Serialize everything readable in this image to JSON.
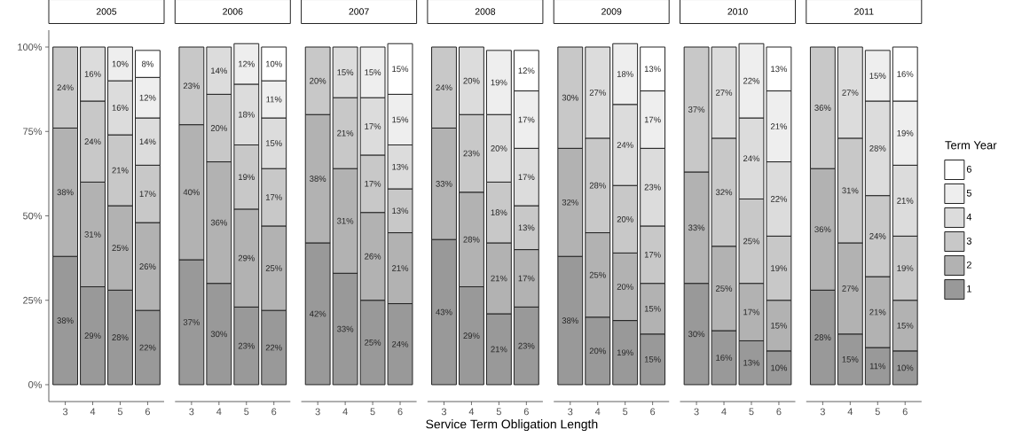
{
  "chart_data": [
    {
      "type": "bar",
      "stacked": true,
      "title": "2005",
      "categories": [
        "3",
        "4",
        "5",
        "6"
      ],
      "ylim": [
        -5,
        105
      ],
      "yticks": [
        {
          "value": 0,
          "label": "0%"
        },
        {
          "value": 25,
          "label": "25%"
        },
        {
          "value": 50,
          "label": "50%"
        },
        {
          "value": 75,
          "label": "75%"
        },
        {
          "value": 100,
          "label": "100%"
        }
      ],
      "series": [
        {
          "color": "#999999",
          "values": [
            38,
            29,
            28,
            22
          ],
          "value_labels": [
            "38%",
            "29%",
            "28%",
            "22%"
          ]
        },
        {
          "color": "#b2b2b2",
          "values": [
            38,
            31,
            25,
            26
          ],
          "value_labels": [
            "38%",
            "31%",
            "25%",
            "26%"
          ]
        },
        {
          "color": "#c8c8c8",
          "values": [
            24,
            24,
            21,
            17
          ],
          "value_labels": [
            "24%",
            "24%",
            "21%",
            "17%"
          ]
        },
        {
          "color": "#dcdcdc",
          "values": [
            null,
            16,
            16,
            14
          ],
          "value_labels": [
            null,
            "16%",
            "16%",
            "14%"
          ]
        },
        {
          "color": "#eeeeee",
          "values": [
            null,
            null,
            10,
            12
          ],
          "value_labels": [
            null,
            null,
            "10%",
            "12%"
          ]
        },
        {
          "color": "#ffffff",
          "values": [
            null,
            null,
            null,
            8
          ],
          "value_labels": [
            null,
            null,
            null,
            "8%"
          ]
        }
      ]
    },
    {
      "type": "bar",
      "stacked": true,
      "title": "2006",
      "categories": [
        "3",
        "4",
        "5",
        "6"
      ],
      "tick_labels": "x",
      "series": [
        {
          "color": "#999999",
          "values": [
            37,
            30,
            23,
            22
          ],
          "value_labels": [
            "37%",
            "30%",
            "23%",
            "22%"
          ]
        },
        {
          "color": "#b2b2b2",
          "values": [
            40,
            36,
            29,
            25
          ],
          "value_labels": [
            "40%",
            "36%",
            "29%",
            "25%"
          ]
        },
        {
          "color": "#c8c8c8",
          "values": [
            23,
            20,
            19,
            17
          ],
          "value_labels": [
            "23%",
            "20%",
            "19%",
            "17%"
          ]
        },
        {
          "color": "#dcdcdc",
          "values": [
            null,
            14,
            18,
            15
          ],
          "value_labels": [
            null,
            "14%",
            "18%",
            "15%"
          ]
        },
        {
          "color": "#eeeeee",
          "values": [
            null,
            null,
            12,
            11
          ],
          "value_labels": [
            null,
            null,
            "12%",
            "11%"
          ]
        },
        {
          "color": "#ffffff",
          "values": [
            null,
            null,
            null,
            10
          ],
          "value_labels": [
            null,
            null,
            null,
            "10%"
          ]
        }
      ]
    },
    {
      "type": "bar",
      "stacked": true,
      "title": "2007",
      "categories": [
        "3",
        "4",
        "5",
        "6"
      ],
      "tick_labels": "x",
      "series": [
        {
          "color": "#999999",
          "values": [
            42,
            33,
            25,
            24
          ],
          "value_labels": [
            "42%",
            "33%",
            "25%",
            "24%"
          ]
        },
        {
          "color": "#b2b2b2",
          "values": [
            38,
            31,
            26,
            21
          ],
          "value_labels": [
            "38%",
            "31%",
            "26%",
            "21%"
          ]
        },
        {
          "color": "#c8c8c8",
          "values": [
            20,
            21,
            17,
            13
          ],
          "value_labels": [
            "20%",
            "21%",
            "17%",
            "13%"
          ]
        },
        {
          "color": "#dcdcdc",
          "values": [
            null,
            15,
            17,
            13
          ],
          "value_labels": [
            null,
            "15%",
            "17%",
            "13%"
          ]
        },
        {
          "color": "#eeeeee",
          "values": [
            null,
            null,
            15,
            15
          ],
          "value_labels": [
            null,
            null,
            "15%",
            "15%"
          ]
        },
        {
          "color": "#ffffff",
          "values": [
            null,
            null,
            null,
            15
          ],
          "value_labels": [
            null,
            null,
            null,
            "15%"
          ]
        }
      ]
    },
    {
      "type": "bar",
      "stacked": true,
      "title": "2008",
      "categories": [
        "3",
        "4",
        "5",
        "6"
      ],
      "tick_labels": "x",
      "xlabel": "Service Term Obligation Length",
      "series": [
        {
          "color": "#999999",
          "values": [
            43,
            29,
            21,
            23
          ],
          "value_labels": [
            "43%",
            "29%",
            "21%",
            "23%"
          ]
        },
        {
          "color": "#b2b2b2",
          "values": [
            33,
            28,
            21,
            17
          ],
          "value_labels": [
            "33%",
            "28%",
            "21%",
            "17%"
          ]
        },
        {
          "color": "#c8c8c8",
          "values": [
            24,
            23,
            18,
            13
          ],
          "value_labels": [
            "24%",
            "23%",
            "18%",
            "13%"
          ]
        },
        {
          "color": "#dcdcdc",
          "values": [
            null,
            20,
            20,
            17
          ],
          "value_labels": [
            null,
            "20%",
            "20%",
            "17%"
          ]
        },
        {
          "color": "#eeeeee",
          "values": [
            null,
            null,
            19,
            17
          ],
          "value_labels": [
            null,
            null,
            "19%",
            "17%"
          ]
        },
        {
          "color": "#ffffff",
          "values": [
            null,
            null,
            null,
            12
          ],
          "value_labels": [
            null,
            null,
            null,
            "12%"
          ]
        }
      ]
    },
    {
      "type": "bar",
      "stacked": true,
      "title": "2009",
      "categories": [
        "3",
        "4",
        "5",
        "6"
      ],
      "tick_labels": "x",
      "series": [
        {
          "color": "#999999",
          "values": [
            38,
            20,
            19,
            15
          ],
          "value_labels": [
            "38%",
            "20%",
            "19%",
            "15%"
          ]
        },
        {
          "color": "#b2b2b2",
          "values": [
            32,
            25,
            20,
            15
          ],
          "value_labels": [
            "32%",
            "25%",
            "20%",
            "15%"
          ]
        },
        {
          "color": "#c8c8c8",
          "values": [
            30,
            28,
            20,
            17
          ],
          "value_labels": [
            "30%",
            "28%",
            "20%",
            "17%"
          ]
        },
        {
          "color": "#dcdcdc",
          "values": [
            null,
            27,
            24,
            23
          ],
          "value_labels": [
            null,
            "27%",
            "24%",
            "23%"
          ]
        },
        {
          "color": "#eeeeee",
          "values": [
            null,
            null,
            18,
            17
          ],
          "value_labels": [
            null,
            null,
            "18%",
            "17%"
          ]
        },
        {
          "color": "#ffffff",
          "values": [
            null,
            null,
            null,
            13
          ],
          "value_labels": [
            null,
            null,
            null,
            "13%"
          ]
        }
      ]
    },
    {
      "type": "bar",
      "stacked": true,
      "title": "2010",
      "categories": [
        "3",
        "4",
        "5",
        "6"
      ],
      "tick_labels": "x",
      "series": [
        {
          "color": "#999999",
          "values": [
            30,
            16,
            13,
            10
          ],
          "value_labels": [
            "30%",
            "16%",
            "13%",
            "10%"
          ]
        },
        {
          "color": "#b2b2b2",
          "values": [
            33,
            25,
            17,
            15
          ],
          "value_labels": [
            "33%",
            "25%",
            "17%",
            "15%"
          ]
        },
        {
          "color": "#c8c8c8",
          "values": [
            37,
            32,
            25,
            19
          ],
          "value_labels": [
            "37%",
            "32%",
            "25%",
            "19%"
          ]
        },
        {
          "color": "#dcdcdc",
          "values": [
            null,
            27,
            24,
            22
          ],
          "value_labels": [
            null,
            "27%",
            "24%",
            "22%"
          ]
        },
        {
          "color": "#eeeeee",
          "values": [
            null,
            null,
            22,
            21
          ],
          "value_labels": [
            null,
            null,
            "22%",
            "21%"
          ]
        },
        {
          "color": "#ffffff",
          "values": [
            null,
            null,
            null,
            13
          ],
          "value_labels": [
            null,
            null,
            null,
            "13%"
          ]
        }
      ]
    },
    {
      "type": "bar",
      "stacked": true,
      "title": "2011",
      "categories": [
        "3",
        "4",
        "5",
        "6"
      ],
      "tick_labels": "x",
      "legend": "right",
      "legend_title": "Term Year",
      "series": [
        {
          "name": "1",
          "color": "#999999",
          "values": [
            28,
            15,
            11,
            10
          ],
          "value_labels": [
            "28%",
            "15%",
            "11%",
            "10%"
          ]
        },
        {
          "name": "2",
          "color": "#b2b2b2",
          "values": [
            36,
            27,
            21,
            15
          ],
          "value_labels": [
            "36%",
            "27%",
            "21%",
            "15%"
          ]
        },
        {
          "name": "3",
          "color": "#c8c8c8",
          "values": [
            36,
            31,
            24,
            19
          ],
          "value_labels": [
            "36%",
            "31%",
            "24%",
            "19%"
          ]
        },
        {
          "name": "4",
          "color": "#dcdcdc",
          "values": [
            null,
            27,
            28,
            21
          ],
          "value_labels": [
            null,
            "27%",
            "28%",
            "21%"
          ]
        },
        {
          "name": "5",
          "color": "#eeeeee",
          "values": [
            null,
            null,
            15,
            19
          ],
          "value_labels": [
            null,
            null,
            "15%",
            "19%"
          ]
        },
        {
          "name": "6",
          "color": "#ffffff",
          "values": [
            null,
            null,
            null,
            16
          ],
          "value_labels": [
            null,
            null,
            null,
            "16%"
          ]
        }
      ]
    }
  ]
}
